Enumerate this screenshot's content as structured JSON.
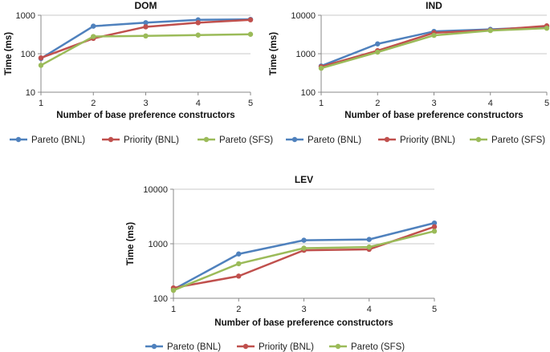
{
  "chart_data": [
    {
      "type": "line",
      "title": "DOM",
      "xlabel": "Number of base preference constructors",
      "ylabel": "Time (ms)",
      "yscale": "log",
      "ylim": [
        10,
        1000
      ],
      "yticks": [
        "10",
        "100",
        "1000"
      ],
      "x": [
        1,
        2,
        3,
        4,
        5
      ],
      "series": [
        {
          "name": "Pareto (BNL)",
          "values": [
            75,
            520,
            640,
            760,
            780
          ]
        },
        {
          "name": "Priority (BNL)",
          "values": [
            78,
            250,
            500,
            640,
            760
          ]
        },
        {
          "name": "Pareto (SFS)",
          "values": [
            50,
            280,
            290,
            305,
            320
          ]
        }
      ]
    },
    {
      "type": "line",
      "title": "IND",
      "xlabel": "Number of base preference constructors",
      "ylabel": "Time (ms)",
      "yscale": "log",
      "ylim": [
        100,
        10000
      ],
      "yticks": [
        "100",
        "1000",
        "10000"
      ],
      "x": [
        1,
        2,
        3,
        4,
        5
      ],
      "series": [
        {
          "name": "Pareto (BNL)",
          "values": [
            480,
            1800,
            3800,
            4300,
            5000
          ]
        },
        {
          "name": "Priority (BNL)",
          "values": [
            460,
            1200,
            3500,
            4100,
            5300
          ]
        },
        {
          "name": "Pareto (SFS)",
          "values": [
            420,
            1100,
            3000,
            4000,
            4600
          ]
        }
      ]
    },
    {
      "type": "line",
      "title": "LEV",
      "xlabel": "Number of base preference constructors",
      "ylabel": "Time (ms)",
      "yscale": "log",
      "ylim": [
        100,
        10000
      ],
      "yticks": [
        "100",
        "1000",
        "10000"
      ],
      "x": [
        1,
        2,
        3,
        4,
        5
      ],
      "series": [
        {
          "name": "Pareto (BNL)",
          "values": [
            145,
            650,
            1160,
            1200,
            2400
          ]
        },
        {
          "name": "Priority (BNL)",
          "values": [
            155,
            255,
            760,
            790,
            2050
          ]
        },
        {
          "name": "Pareto (SFS)",
          "values": [
            140,
            430,
            830,
            870,
            1700
          ]
        }
      ]
    }
  ],
  "colors": {
    "Pareto (BNL)": "#4f81bd",
    "Priority (BNL)": "#c0504d",
    "Pareto (SFS)": "#9bbb59",
    "axis": "#888888",
    "grid": "#c8c8c8"
  }
}
